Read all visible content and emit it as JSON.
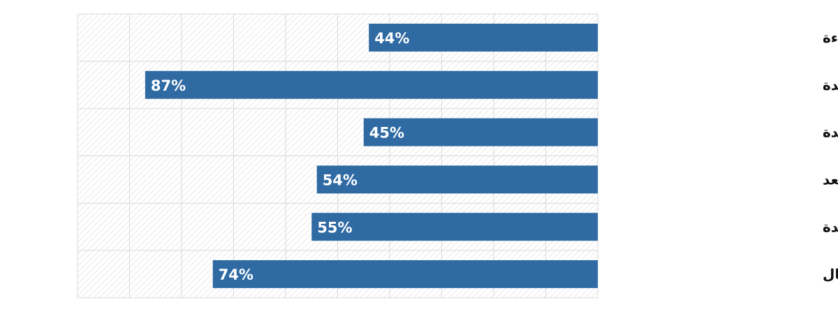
{
  "chart_data": {
    "type": "bar",
    "orientation": "horizontal",
    "direction": "right-to-left",
    "categories": [
      "عمليات تجارية أكثر كفاءة",
      "ابتكار نماذج أعمال جديدة",
      "إنشاء منتجات وخدمات جديدة",
      "تحسين العمل عن بعد",
      "توفير ميزة تجارية جديدة",
      "خفض تكاليف الأعمال"
    ],
    "values": [
      44,
      87,
      45,
      54,
      55,
      74
    ],
    "value_labels": [
      "44%",
      "87%",
      "45%",
      "54%",
      "55%",
      "74%"
    ],
    "xlim": [
      0,
      100
    ],
    "grid": true,
    "legend": "none",
    "colors": {
      "bar": "#2f6aa3",
      "grid": "#d9d9d9",
      "hatch": "#e6e6e6",
      "label": "#ffffff",
      "category": "#111111"
    }
  }
}
